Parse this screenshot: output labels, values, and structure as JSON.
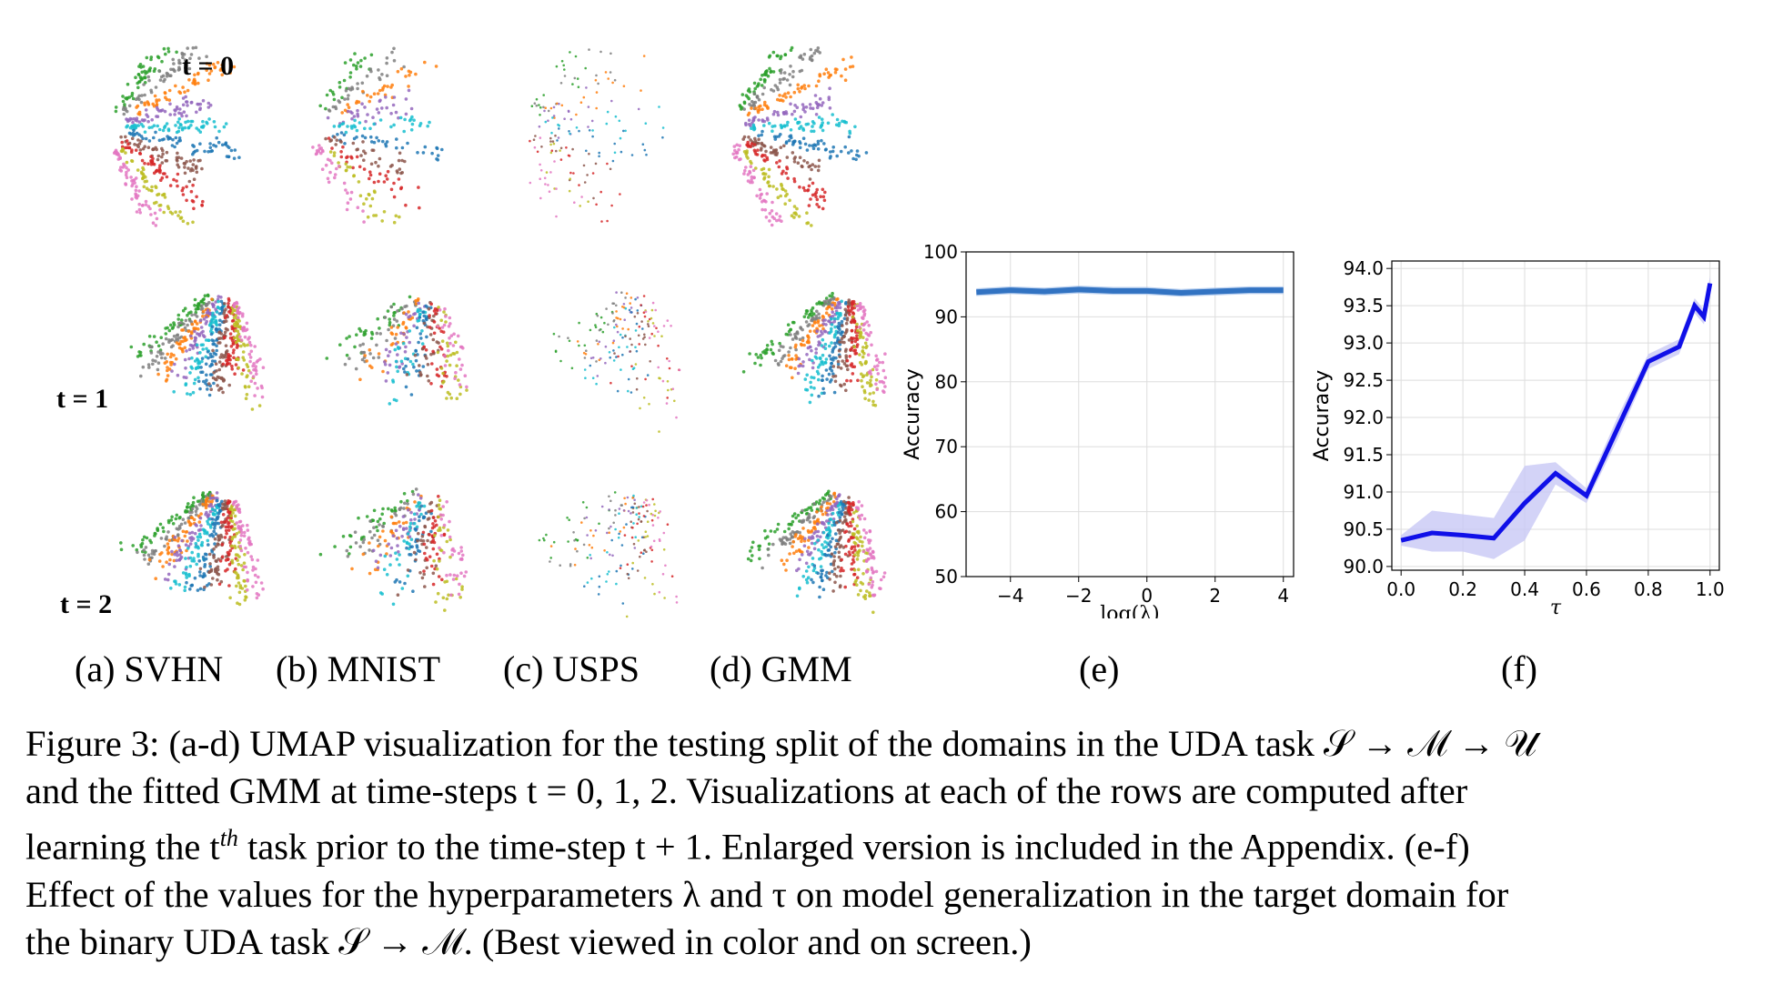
{
  "figure": {
    "row_labels": [
      "t = 0",
      "t = 1",
      "t = 2"
    ],
    "sublabels": [
      "(a) SVHN",
      "(b) MNIST",
      "(c) USPS",
      "(d) GMM",
      "(e)",
      "(f)"
    ],
    "cluster_colors": [
      "#2ca02c",
      "#7f7f7f",
      "#ff7f0e",
      "#9467bd",
      "#17becf",
      "#1f77b4",
      "#8c564b",
      "#d62728",
      "#bcbd22",
      "#e377c2"
    ],
    "caption": {
      "line1": "Figure 3: (a-d) UMAP visualization for the testing split of the domains in the UDA task 𝒮 → ℳ → 𝒰",
      "line2": "and the fitted GMM at time-steps t = 0, 1, 2. Visualizations at each of the rows are computed after",
      "line3_a": "learning the t",
      "line3_sup": "th",
      "line3_b": " task prior to the time-step t + 1. Enlarged version is included in the Appendix. (e-f)",
      "line4": "Effect of the values for the hyperparameters λ and τ on model generalization in the target domain for",
      "line5": "the binary UDA task 𝒮 → ℳ. (Best viewed in color and on screen.)"
    }
  },
  "chart_data": [
    {
      "type": "line",
      "xlabel": "log(λ)",
      "ylabel": "Accuracy",
      "xlim": [
        -5.3,
        4.3
      ],
      "ylim": [
        50,
        100
      ],
      "xticks": [
        -4,
        -2,
        0,
        2,
        4
      ],
      "xtick_labels": [
        "−4",
        "−2",
        "0",
        "2",
        "4"
      ],
      "yticks": [
        50,
        60,
        70,
        80,
        90,
        100
      ],
      "grid": true,
      "line_color": "#3273c2",
      "band_color": "#aac6ec",
      "series": [
        {
          "x": [
            -5,
            -4,
            -3,
            -2,
            -1,
            0,
            1,
            2,
            3,
            4
          ],
          "values": [
            93.8,
            94.1,
            93.9,
            94.2,
            94.0,
            94.0,
            93.7,
            93.9,
            94.1,
            94.1
          ],
          "lower": [
            93.2,
            93.5,
            93.3,
            93.6,
            93.4,
            93.4,
            93.1,
            93.3,
            93.5,
            93.5
          ],
          "upper": [
            94.4,
            94.7,
            94.5,
            94.8,
            94.6,
            94.6,
            94.3,
            94.5,
            94.7,
            94.7
          ]
        }
      ]
    },
    {
      "type": "line",
      "xlabel": "τ",
      "ylabel": "Accuracy",
      "xlim": [
        -0.03,
        1.03
      ],
      "ylim": [
        89.95,
        94.1
      ],
      "xticks": [
        0.0,
        0.2,
        0.4,
        0.6,
        0.8,
        1.0
      ],
      "xtick_labels": [
        "0.0",
        "0.2",
        "0.4",
        "0.6",
        "0.8",
        "1.0"
      ],
      "yticks": [
        90.0,
        90.5,
        91.0,
        91.5,
        92.0,
        92.5,
        93.0,
        93.5,
        94.0
      ],
      "ytick_labels": [
        "90.0",
        "90.5",
        "91.0",
        "91.5",
        "92.0",
        "92.5",
        "93.0",
        "93.5",
        "94.0"
      ],
      "grid": true,
      "line_color": "#1010e8",
      "band_color": "#c8c8f5",
      "series": [
        {
          "x": [
            0.0,
            0.1,
            0.2,
            0.3,
            0.4,
            0.5,
            0.6,
            0.7,
            0.8,
            0.9,
            0.95,
            0.98,
            1.0
          ],
          "values": [
            90.35,
            90.45,
            90.42,
            90.38,
            90.85,
            91.25,
            90.95,
            91.85,
            92.75,
            92.95,
            93.5,
            93.35,
            93.8
          ],
          "lower": [
            90.28,
            90.2,
            90.2,
            90.1,
            90.35,
            91.1,
            90.85,
            91.7,
            92.65,
            92.85,
            93.4,
            93.25,
            93.7
          ],
          "upper": [
            90.42,
            90.75,
            90.7,
            90.65,
            91.35,
            91.4,
            91.05,
            92.0,
            92.85,
            93.05,
            93.6,
            93.45,
            93.9
          ]
        }
      ]
    }
  ]
}
